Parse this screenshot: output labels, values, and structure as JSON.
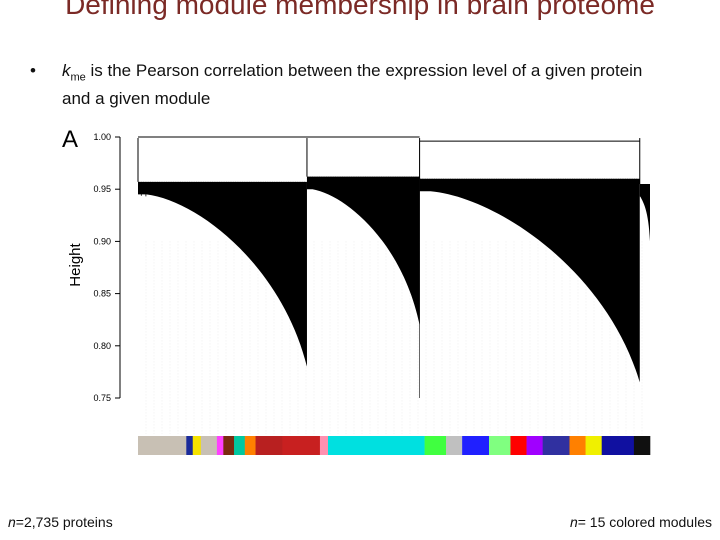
{
  "slide": {
    "title": "Defining module membership in brain proteome",
    "bullet_symbol": "•",
    "bullet_kme_k": "k",
    "bullet_kme_sub": "me",
    "bullet_rest": " is the Pearson correlation between the expression level of a given protein and a given module",
    "footer_left_italic": "n",
    "footer_left_rest": "=2,735 proteins",
    "footer_right_italic": "n",
    "footer_right_rest": "= 15 colored modules"
  },
  "chart_data": {
    "type": "dendrogram",
    "panel_label": "A",
    "ylabel": "Height",
    "ylim": [
      0.74,
      1.0
    ],
    "yticks": [
      "1.00",
      "0.95",
      "0.90",
      "0.85",
      "0.80",
      "0.75"
    ],
    "ytick_values": [
      1.0,
      0.95,
      0.9,
      0.85,
      0.8,
      0.75
    ],
    "merge_height": 1.0,
    "clusters": [
      {
        "x_start": 0.0,
        "x_end": 0.33,
        "top": 0.957,
        "bottom": 0.78
      },
      {
        "x_start": 0.33,
        "x_end": 0.55,
        "top": 0.962,
        "bottom": 0.82
      },
      {
        "x_start": 0.55,
        "x_end": 0.98,
        "top": 0.96,
        "bottom": 0.765
      },
      {
        "x_start": 0.98,
        "x_end": 1.0,
        "top": 0.955,
        "bottom": 0.9
      }
    ],
    "module_colors": [
      "#c8c0b4",
      "#1a2a9a",
      "#f5e200",
      "#c8c0b4",
      "#ff40ff",
      "#7a2a10",
      "#00c8a0",
      "#ff8000",
      "#b82020",
      "#c82020",
      "#ff90b0",
      "#00e0e0",
      "#00e0e0",
      "#40ff40",
      "#c0c0c0",
      "#2020ff",
      "#80ff80",
      "#ff0000",
      "#a000ff",
      "#3030a0",
      "#ff8000",
      "#f0f000",
      "#1010a0",
      "#101010"
    ],
    "module_widths": [
      0.09,
      0.012,
      0.015,
      0.03,
      0.012,
      0.02,
      0.02,
      0.02,
      0.05,
      0.07,
      0.015,
      0.12,
      0.06,
      0.04,
      0.03,
      0.05,
      0.04,
      0.03,
      0.03,
      0.05,
      0.03,
      0.03,
      0.06,
      0.03
    ]
  }
}
